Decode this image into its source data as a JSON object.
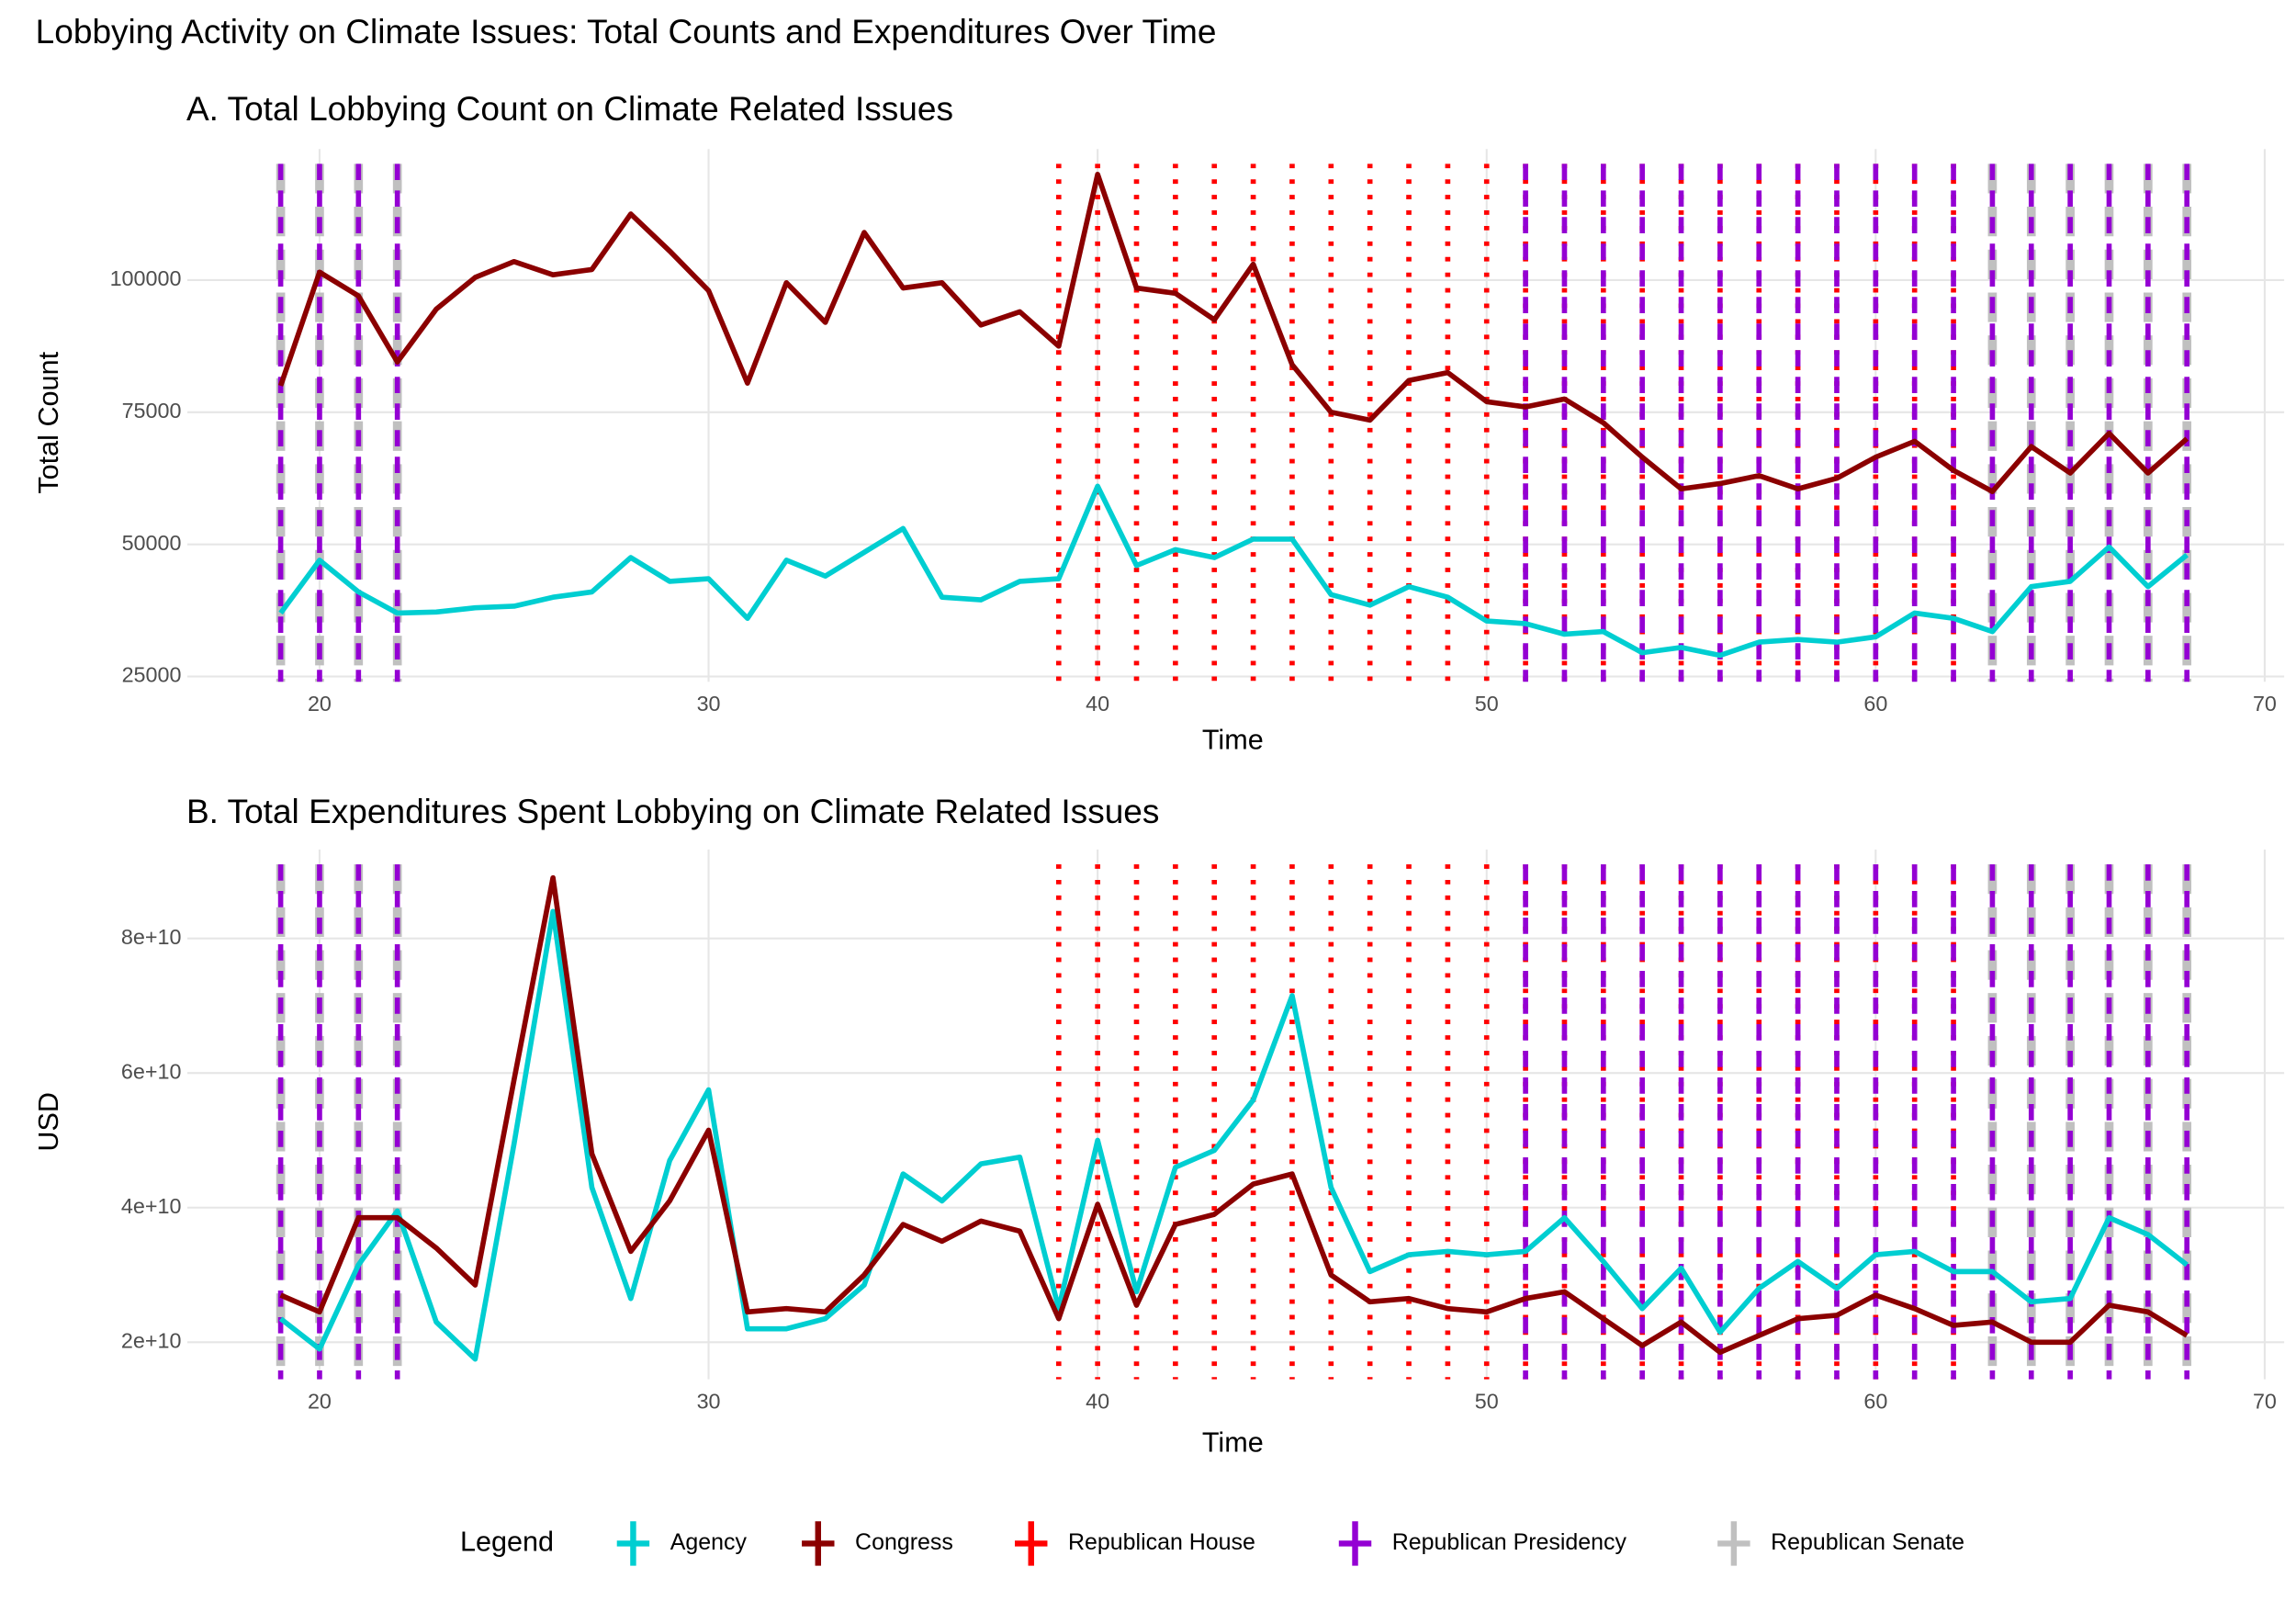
{
  "title": "Lobbying Activity on Climate Issues: Total Counts and Expenditures Over Time",
  "legend_title": "Legend",
  "chart_data": [
    {
      "type": "line",
      "title": "A. Total Lobbying Count on Climate Related Issues",
      "x_label": "Time",
      "y_label": "Total Count",
      "x": [
        19,
        20,
        21,
        22,
        23,
        24,
        25,
        26,
        27,
        28,
        29,
        30,
        31,
        32,
        33,
        34,
        35,
        36,
        37,
        38,
        39,
        40,
        41,
        42,
        43,
        44,
        45,
        46,
        47,
        48,
        49,
        50,
        51,
        52,
        53,
        54,
        55,
        56,
        57,
        58,
        59,
        60,
        61,
        62,
        63,
        64,
        65,
        66,
        67,
        68
      ],
      "series": [
        {
          "name": "Agency",
          "color": "#00ced1",
          "values": [
            37000,
            47000,
            41000,
            37000,
            37200,
            38000,
            38300,
            40000,
            41000,
            47500,
            43000,
            43500,
            36000,
            47000,
            44000,
            48500,
            53000,
            40000,
            39500,
            43000,
            43500,
            61000,
            46000,
            49000,
            47500,
            51000,
            51000,
            40500,
            38500,
            42000,
            40000,
            35500,
            35000,
            33000,
            33500,
            29500,
            30500,
            29000,
            31500,
            32000,
            31500,
            32500,
            37000,
            36000,
            33500,
            42000,
            43000,
            49500,
            42000,
            48000
          ]
        },
        {
          "name": "Congress",
          "color": "#8b0000",
          "values": [
            80000,
            101500,
            97000,
            84500,
            94500,
            100500,
            103500,
            101000,
            102000,
            112500,
            105500,
            98000,
            80500,
            99500,
            92000,
            109000,
            98500,
            99500,
            91500,
            94000,
            87500,
            120000,
            98500,
            97500,
            92500,
            103000,
            84000,
            75000,
            73500,
            81000,
            82500,
            77000,
            76000,
            77500,
            73000,
            66500,
            60500,
            61500,
            63000,
            60500,
            62500,
            66500,
            69500,
            64000,
            60000,
            68500,
            63500,
            71000,
            63500,
            70000
          ]
        }
      ],
      "vlines": [
        {
          "name": "Republican House",
          "color": "#ff0000",
          "style": "dotted",
          "x": [
            39,
            40,
            41,
            42,
            43,
            44,
            45,
            46,
            47,
            48,
            49,
            50,
            51,
            52,
            53,
            54,
            55,
            56,
            57,
            58,
            59,
            60,
            61,
            62
          ]
        },
        {
          "name": "Republican Presidency",
          "color": "#9400d3",
          "style": "dashed",
          "x": [
            19,
            20,
            21,
            22,
            51,
            52,
            53,
            54,
            55,
            56,
            57,
            58,
            59,
            60,
            61,
            62,
            63,
            64,
            65,
            66,
            67,
            68
          ]
        },
        {
          "name": "Republican Senate",
          "color": "#c0c0c0",
          "style": "longdash",
          "x": [
            19,
            20,
            21,
            22,
            63,
            64,
            65,
            66,
            67,
            68
          ]
        }
      ],
      "xlim": [
        16.6,
        70.5
      ],
      "xticks": [
        20,
        30,
        40,
        50,
        60,
        70
      ],
      "ylim": [
        24000,
        122000
      ],
      "yticks": [
        25000,
        50000,
        75000,
        100000
      ],
      "grid": true
    },
    {
      "type": "line",
      "title": "B. Total Expenditures Spent Lobbying on Climate Related Issues",
      "x_label": "Time",
      "y_label": "USD",
      "x": [
        19,
        20,
        21,
        22,
        23,
        24,
        25,
        26,
        27,
        28,
        29,
        30,
        31,
        32,
        33,
        34,
        35,
        36,
        37,
        38,
        39,
        40,
        41,
        42,
        43,
        44,
        45,
        46,
        47,
        48,
        49,
        50,
        51,
        52,
        53,
        54,
        55,
        56,
        57,
        58,
        59,
        60,
        61,
        62,
        63,
        64,
        65,
        66,
        67,
        68
      ],
      "series": [
        {
          "name": "Agency",
          "color": "#00ced1",
          "values": [
            23500000000,
            19000000000,
            31500000000,
            39500000000,
            23000000000,
            17500000000,
            49500000000,
            84000000000,
            43000000000,
            26500000000,
            47000000000,
            57500000000,
            22000000000,
            22000000000,
            23500000000,
            28500000000,
            45000000000,
            41000000000,
            46500000000,
            47500000000,
            25000000000,
            50000000000,
            27500000000,
            46000000000,
            48500000000,
            56000000000,
            71500000000,
            43000000000,
            30500000000,
            33000000000,
            33500000000,
            33000000000,
            33500000000,
            38500000000,
            32000000000,
            25000000000,
            31000000000,
            21500000000,
            28000000000,
            32000000000,
            28000000000,
            33000000000,
            33500000000,
            30500000000,
            30500000000,
            26000000000,
            26500000000,
            38500000000,
            36000000000,
            31500000000
          ]
        },
        {
          "name": "Congress",
          "color": "#8b0000",
          "values": [
            27000000000,
            24500000000,
            38500000000,
            38500000000,
            34000000000,
            28500000000,
            59000000000,
            89000000000,
            48000000000,
            33500000000,
            41000000000,
            51500000000,
            24500000000,
            25000000000,
            24500000000,
            30000000000,
            37500000000,
            35000000000,
            38000000000,
            36500000000,
            23500000000,
            40500000000,
            25500000000,
            37500000000,
            39000000000,
            43500000000,
            45000000000,
            30000000000,
            26000000000,
            26500000000,
            25000000000,
            24500000000,
            26500000000,
            27500000000,
            23500000000,
            19500000000,
            23000000000,
            18500000000,
            21000000000,
            23500000000,
            24000000000,
            27000000000,
            25000000000,
            22500000000,
            23000000000,
            20000000000,
            20000000000,
            25500000000,
            24500000000,
            21000000000
          ]
        }
      ],
      "vlines": [
        {
          "name": "Republican House",
          "color": "#ff0000",
          "style": "dotted",
          "x": [
            39,
            40,
            41,
            42,
            43,
            44,
            45,
            46,
            47,
            48,
            49,
            50,
            51,
            52,
            53,
            54,
            55,
            56,
            57,
            58,
            59,
            60,
            61,
            62
          ]
        },
        {
          "name": "Republican Presidency",
          "color": "#9400d3",
          "style": "dashed",
          "x": [
            19,
            20,
            21,
            22,
            51,
            52,
            53,
            54,
            55,
            56,
            57,
            58,
            59,
            60,
            61,
            62,
            63,
            64,
            65,
            66,
            67,
            68
          ]
        },
        {
          "name": "Republican Senate",
          "color": "#c0c0c0",
          "style": "longdash",
          "x": [
            19,
            20,
            21,
            22,
            63,
            64,
            65,
            66,
            67,
            68
          ]
        }
      ],
      "xlim": [
        16.6,
        70.5
      ],
      "xticks": [
        20,
        30,
        40,
        50,
        60,
        70
      ],
      "ylim": [
        14500000000,
        91000000000
      ],
      "yticks": [
        {
          "value": 20000000000,
          "label": "2e+10"
        },
        {
          "value": 40000000000,
          "label": "4e+10"
        },
        {
          "value": 60000000000,
          "label": "6e+10"
        },
        {
          "value": 80000000000,
          "label": "8e+10"
        }
      ],
      "grid": true
    }
  ]
}
